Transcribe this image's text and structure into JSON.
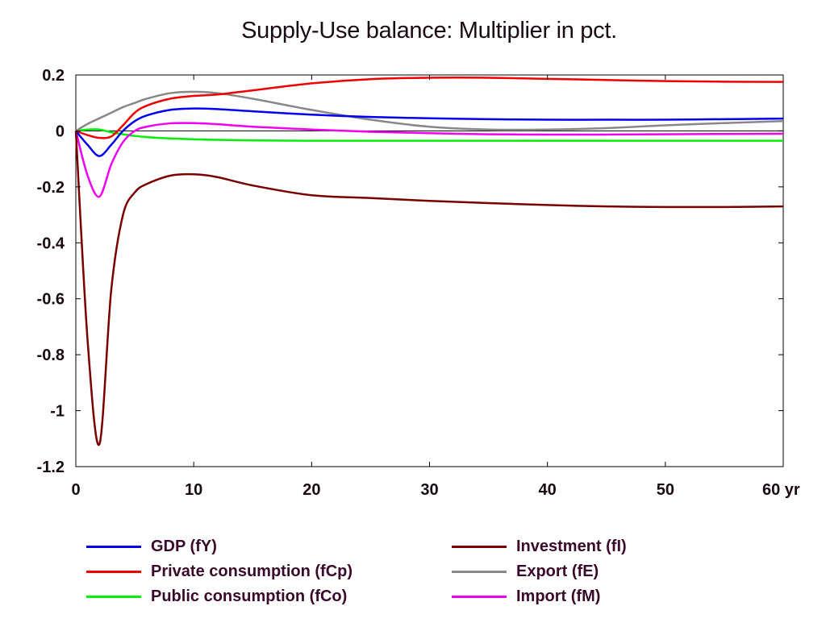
{
  "chart_data": {
    "type": "line",
    "title": "Supply-Use balance: Multiplier in pct.",
    "xlabel": "",
    "ylabel": "",
    "x_unit_label": "yr",
    "xlim": [
      0,
      60
    ],
    "ylim": [
      -1.2,
      0.2
    ],
    "x_ticks": [
      0,
      10,
      20,
      30,
      40,
      50,
      60
    ],
    "x_tick_labels": [
      "0",
      "10",
      "20",
      "30",
      "40",
      "50",
      "60 yr"
    ],
    "y_ticks": [
      0.2,
      0,
      -0.2,
      -0.4,
      -0.6,
      -0.8,
      -1,
      -1.2
    ],
    "y_tick_labels": [
      "0.2",
      "0",
      "-0.2",
      "-0.4",
      "-0.6",
      "-0.8",
      "-1",
      "-1.2"
    ],
    "grid": false,
    "zero_line": true,
    "legend_position": "bottom",
    "x": [
      0,
      1,
      2,
      3,
      4,
      5,
      6,
      8,
      10,
      12,
      15,
      20,
      25,
      30,
      35,
      40,
      45,
      50,
      55,
      60
    ],
    "series": [
      {
        "name": "GDP (fY)",
        "color": "#0000ee",
        "values": [
          0,
          -0.05,
          -0.09,
          -0.05,
          0.0,
          0.035,
          0.055,
          0.075,
          0.08,
          0.078,
          0.07,
          0.058,
          0.05,
          0.045,
          0.042,
          0.04,
          0.04,
          0.04,
          0.042,
          0.044
        ]
      },
      {
        "name": "Private consumption (fCp)",
        "color": "#ee0000",
        "values": [
          0,
          -0.015,
          -0.025,
          -0.02,
          0.02,
          0.065,
          0.09,
          0.115,
          0.125,
          0.13,
          0.145,
          0.17,
          0.185,
          0.19,
          0.19,
          0.186,
          0.182,
          0.178,
          0.176,
          0.175
        ]
      },
      {
        "name": "Public consumption (fCo)",
        "color": "#00ee00",
        "values": [
          0,
          0.005,
          0.005,
          -0.005,
          -0.012,
          -0.018,
          -0.022,
          -0.027,
          -0.03,
          -0.032,
          -0.034,
          -0.035,
          -0.035,
          -0.035,
          -0.035,
          -0.035,
          -0.035,
          -0.035,
          -0.035,
          -0.035
        ]
      },
      {
        "name": "Investment (fI)",
        "color": "#7a0000",
        "values": [
          0,
          -0.75,
          -1.12,
          -0.57,
          -0.3,
          -0.22,
          -0.19,
          -0.16,
          -0.155,
          -0.165,
          -0.195,
          -0.23,
          -0.24,
          -0.25,
          -0.258,
          -0.265,
          -0.27,
          -0.272,
          -0.272,
          -0.27
        ]
      },
      {
        "name": "Export (fE)",
        "color": "#888888",
        "values": [
          0,
          0.025,
          0.045,
          0.065,
          0.085,
          0.1,
          0.115,
          0.135,
          0.14,
          0.135,
          0.115,
          0.075,
          0.04,
          0.015,
          0.005,
          0.005,
          0.01,
          0.02,
          0.028,
          0.035
        ]
      },
      {
        "name": "Import (fM)",
        "color": "#ee00ee",
        "values": [
          0,
          -0.16,
          -0.235,
          -0.12,
          -0.04,
          0.0,
          0.015,
          0.027,
          0.028,
          0.024,
          0.015,
          0.005,
          -0.003,
          -0.008,
          -0.012,
          -0.013,
          -0.013,
          -0.012,
          -0.011,
          -0.01
        ]
      }
    ]
  }
}
